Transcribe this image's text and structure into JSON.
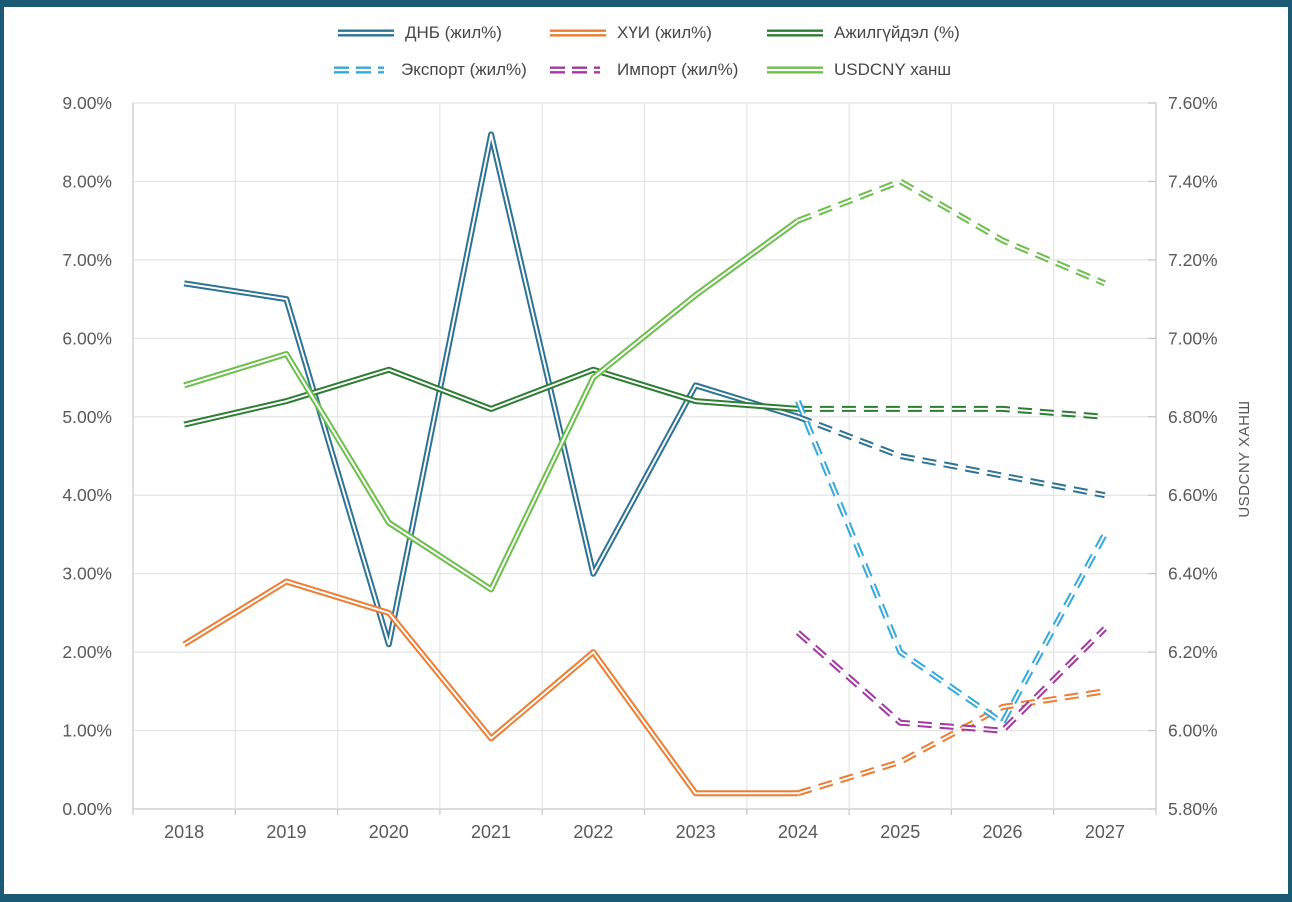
{
  "frame": {
    "border_color": "#1a5a74",
    "panel_background": "#ffffff"
  },
  "chart_data": {
    "type": "line",
    "categories": [
      "2018",
      "2019",
      "2020",
      "2021",
      "2022",
      "2023",
      "2024",
      "2025",
      "2026",
      "2027"
    ],
    "series": [
      {
        "name": "ДНБ (жил%)",
        "axis": "left",
        "color": "#2d7396",
        "forecast_from_index": 6,
        "values": [
          6.7,
          6.5,
          2.1,
          8.6,
          3.0,
          5.4,
          5.0,
          4.5,
          4.25,
          4.0
        ]
      },
      {
        "name": "ХҮИ (жил%)",
        "axis": "left",
        "color": "#ed7d31",
        "forecast_from_index": 6,
        "values": [
          2.1,
          2.9,
          2.5,
          0.9,
          2.0,
          0.2,
          0.2,
          0.6,
          1.3,
          1.5
        ]
      },
      {
        "name": "Ажилгүйдэл (%)",
        "axis": "left",
        "color": "#2d7d33",
        "forecast_from_index": 6,
        "values": [
          4.9,
          5.2,
          5.6,
          5.1,
          5.6,
          5.2,
          5.1,
          5.1,
          5.1,
          5.0
        ]
      },
      {
        "name": "Экспорт (жил%)",
        "axis": "left",
        "color": "#33a9de",
        "forecast_from_index": 6,
        "values": [
          null,
          null,
          null,
          null,
          null,
          null,
          5.2,
          2.0,
          1.1,
          3.5
        ]
      },
      {
        "name": "Импорт (жил%)",
        "axis": "left",
        "color": "#a238a0",
        "forecast_from_index": 6,
        "values": [
          null,
          null,
          null,
          null,
          null,
          null,
          2.25,
          1.1,
          1.0,
          2.3
        ]
      },
      {
        "name": "USDCNY ханш",
        "axis": "right",
        "color": "#6cbf4b",
        "forecast_from_index": 6,
        "values": [
          6.88,
          6.96,
          6.53,
          6.36,
          6.9,
          7.11,
          7.3,
          7.4,
          7.25,
          7.14
        ]
      }
    ],
    "left_axis": {
      "min": 0,
      "max": 9,
      "step": 1,
      "tick_labels": [
        "0.00%",
        "1.00%",
        "2.00%",
        "3.00%",
        "4.00%",
        "5.00%",
        "6.00%",
        "7.00%",
        "8.00%",
        "9.00%"
      ]
    },
    "right_axis": {
      "min": 5.8,
      "max": 7.6,
      "step": 0.2,
      "title": "USDCNY ХАНШ",
      "tick_labels": [
        "5.80%",
        "6.00%",
        "6.20%",
        "6.40%",
        "6.60%",
        "6.80%",
        "7.00%",
        "7.20%",
        "7.40%",
        "7.60%"
      ]
    },
    "grid": true,
    "legend_position": "top",
    "line_style": "double-line (colored stroke with white core), dashed after 2024 forecast"
  }
}
